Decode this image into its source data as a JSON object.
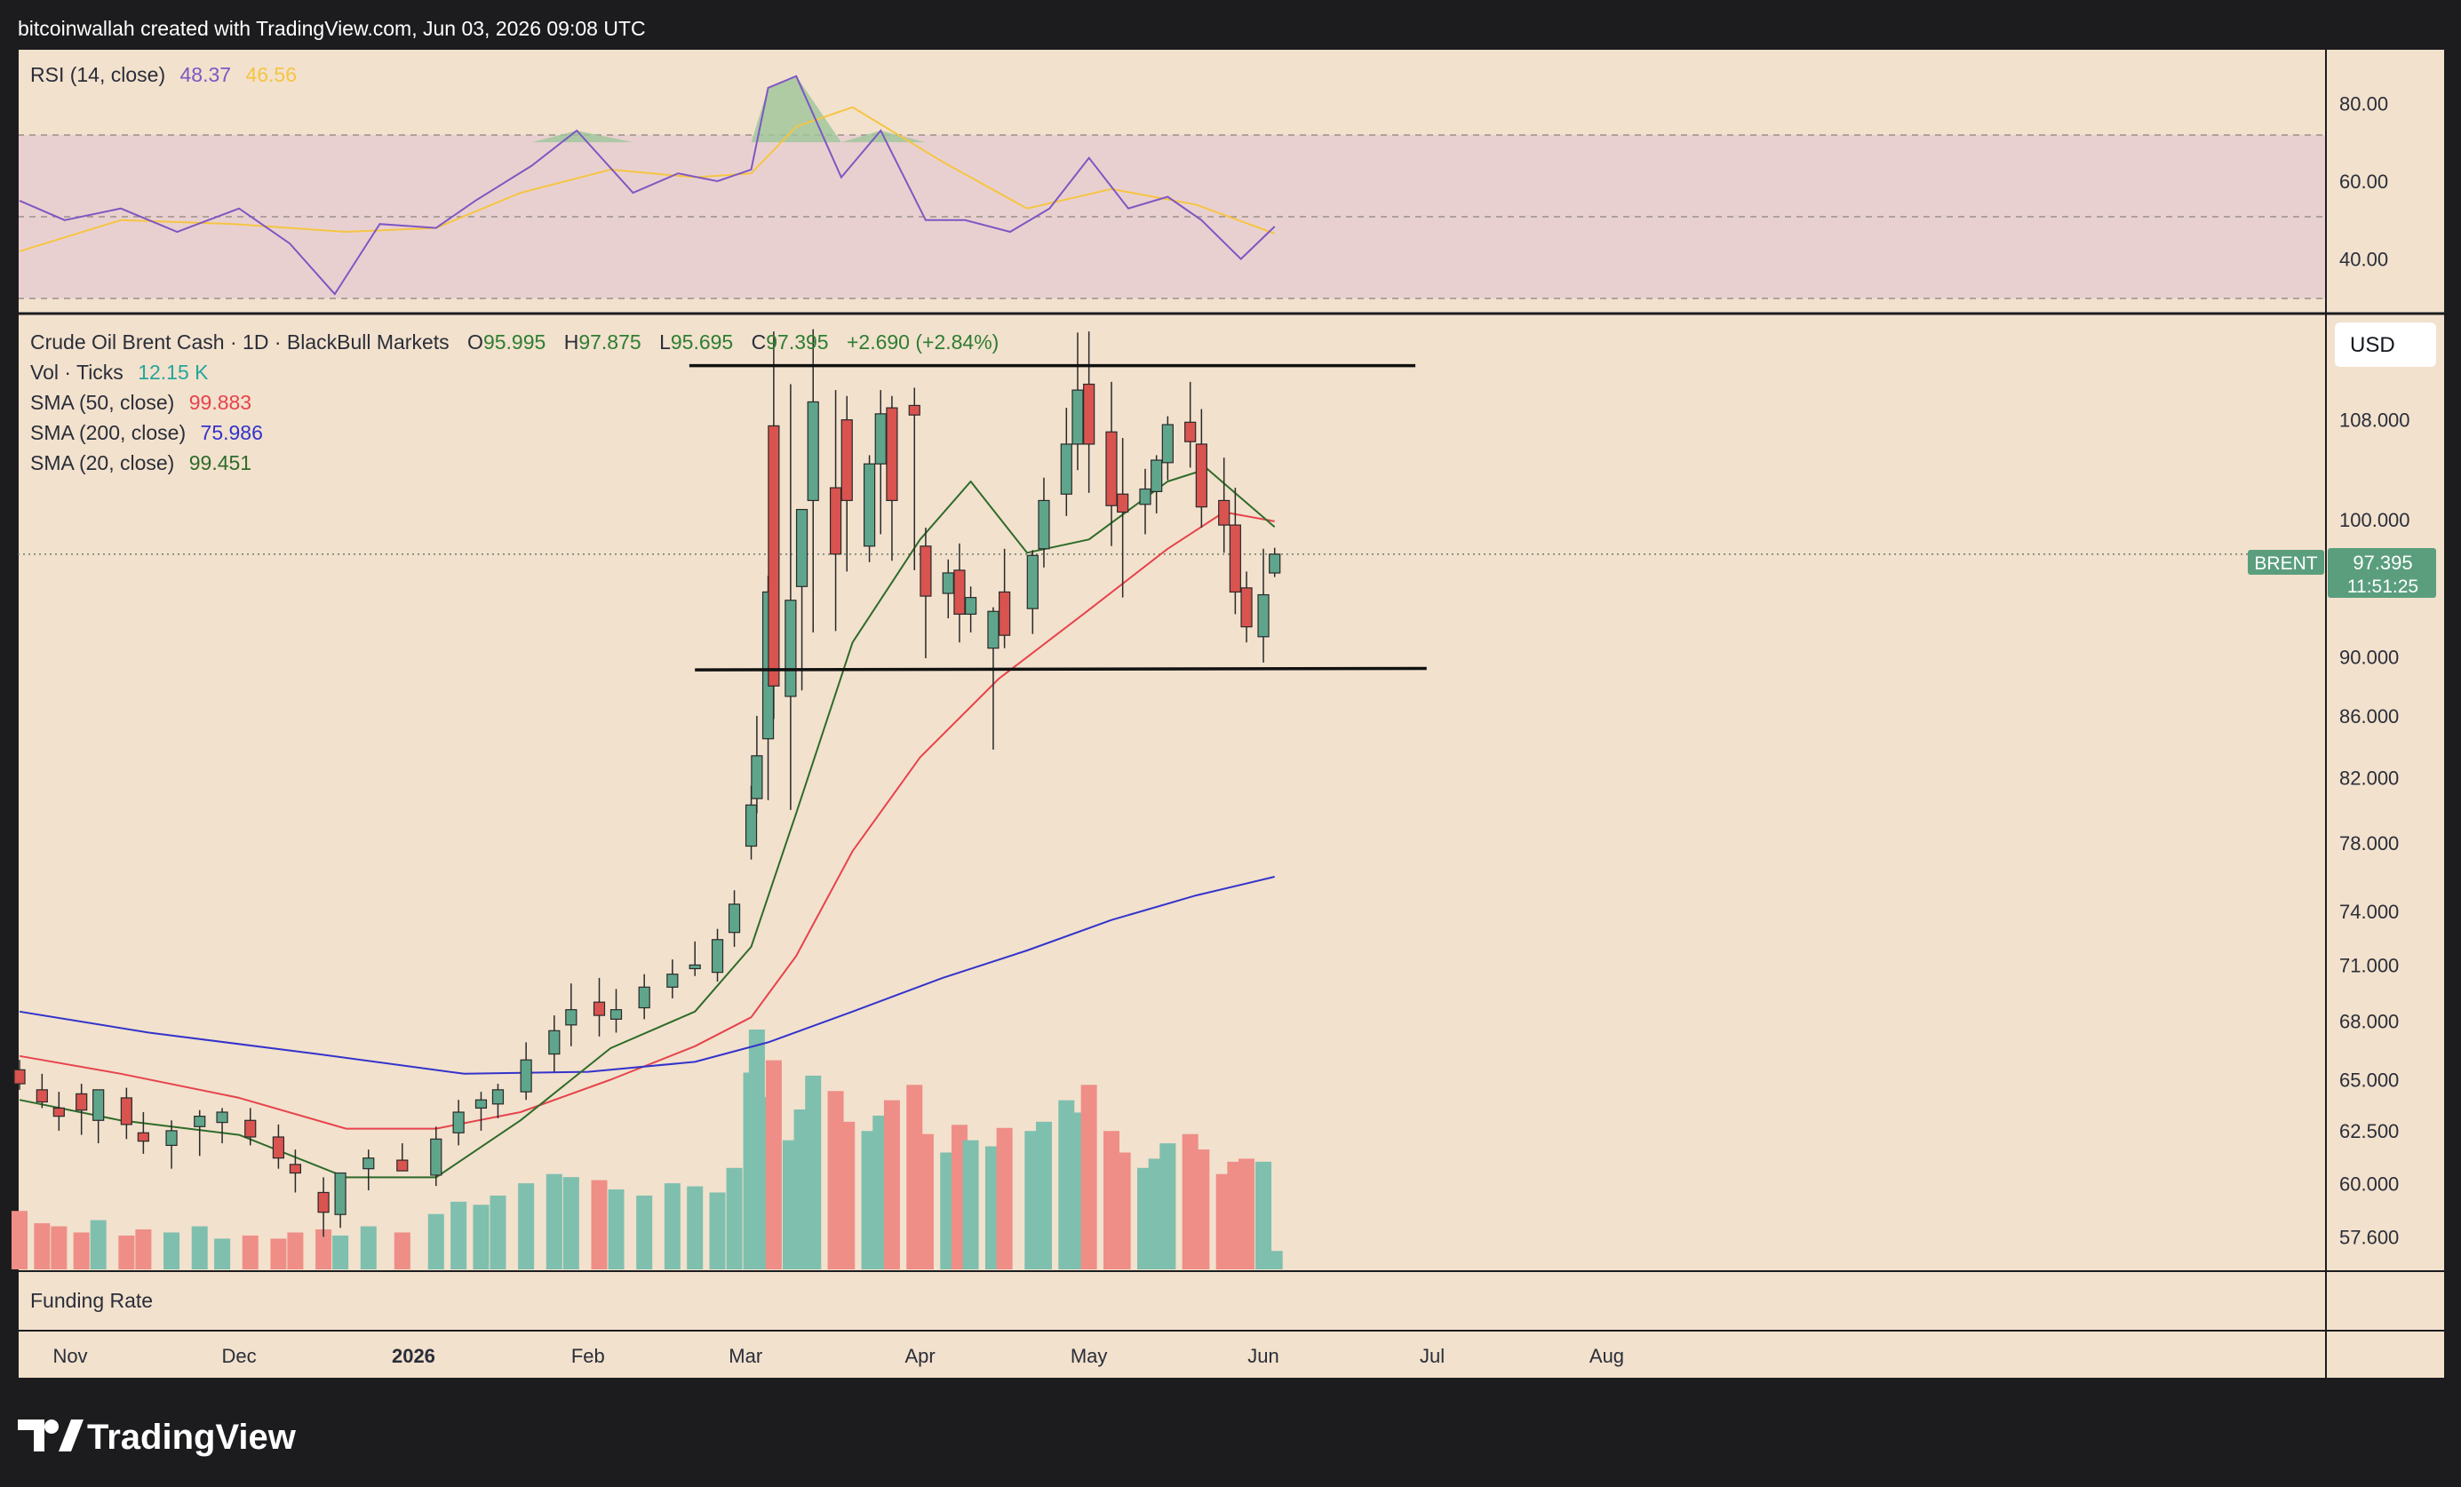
{
  "page": {
    "header_text": "bitcoinwallah created with TradingView.com, Jun 03, 2026 09:08 UTC",
    "brand": "TradingView",
    "brand_icon": "tradingview-logo-icon"
  },
  "colors": {
    "frame": "#1c1c1e",
    "panel_bg": "#f2e1cd",
    "rsi_band": "#e9d0d0",
    "rsi_line": "#7e57c2",
    "rsi_ma": "#f5c542",
    "up": "#5fa58c",
    "down": "#d9534f",
    "vol_up": "#7fbfae",
    "vol_down": "#ee8e87",
    "sma50": "#e6434b",
    "sma200": "#3333cc",
    "sma20": "#2e6b2a",
    "price_tag": "#5a9e7e"
  },
  "rsi_legend": {
    "name": "RSI (14, close)",
    "value": "48.37",
    "ma_value": "46.56"
  },
  "main_legend": {
    "symbol": "Crude Oil Brent Cash · 1D · BlackBull Markets",
    "open_label": "O",
    "open": "95.995",
    "high_label": "H",
    "high": "97.875",
    "low_label": "L",
    "low": "95.695",
    "close_label": "C",
    "close": "97.395",
    "change": "+2.690 (+2.84%)",
    "vol_label": "Vol · Ticks",
    "vol_value": "12.15 K",
    "sma50_label": "SMA (50, close)",
    "sma50_value": "99.883",
    "sma200_label": "SMA (200, close)",
    "sma200_value": "75.986",
    "sma20_label": "SMA (20, close)",
    "sma20_value": "99.451"
  },
  "currency_button": "USD",
  "price_tag": {
    "symbol": "BRENT",
    "price": "97.395",
    "countdown": "11:51:25"
  },
  "funding_label": "Funding Rate",
  "chart_data": [
    {
      "type": "line",
      "title": "RSI (14, close)",
      "y_ticks": [
        "80.00",
        "60.00",
        "40.00"
      ],
      "ylim": [
        26,
        94
      ],
      "band": [
        30,
        70
      ],
      "midline": 50,
      "series": [
        {
          "name": "RSI",
          "x": [
            "2025-10-23",
            "2025-10-31",
            "2025-11-10",
            "2025-11-20",
            "2025-12-01",
            "2025-12-10",
            "2025-12-18",
            "2025-12-26",
            "2026-01-05",
            "2026-01-12",
            "2026-01-22",
            "2026-01-30",
            "2026-02-09",
            "2026-02-17",
            "2026-02-24",
            "2026-03-02",
            "2026-03-05",
            "2026-03-10",
            "2026-03-18",
            "2026-03-25",
            "2026-04-02",
            "2026-04-09",
            "2026-04-17",
            "2026-04-24",
            "2026-05-01",
            "2026-05-08",
            "2026-05-15",
            "2026-05-21",
            "2026-05-28",
            "2026-06-03"
          ],
          "values": [
            55,
            50,
            53,
            47,
            53,
            44,
            31,
            49,
            48,
            55,
            64,
            73,
            57,
            62,
            60,
            63,
            84,
            87,
            61,
            73,
            50,
            50,
            47,
            53,
            66,
            53,
            56,
            50,
            40,
            48.37
          ]
        },
        {
          "name": "RSI-based MA",
          "x": [
            "2025-10-23",
            "2025-11-10",
            "2025-11-30",
            "2025-12-20",
            "2026-01-05",
            "2026-01-20",
            "2026-02-05",
            "2026-02-20",
            "2026-03-02",
            "2026-03-10",
            "2026-03-20",
            "2026-04-05",
            "2026-04-20",
            "2026-05-05",
            "2026-05-20",
            "2026-06-03"
          ],
          "values": [
            42,
            50,
            49,
            47,
            48,
            57,
            63,
            61,
            62,
            74,
            79,
            65,
            53,
            58,
            54,
            46.56
          ]
        }
      ]
    },
    {
      "type": "candlestick",
      "title": "Crude Oil Brent Cash · 1D · BlackBull Markets",
      "y_ticks": [
        "108.000",
        "100.000",
        "90.000",
        "86.000",
        "82.000",
        "78.000",
        "74.000",
        "71.000",
        "68.000",
        "65.000",
        "62.500",
        "60.000",
        "57.600"
      ],
      "x_ticks": [
        "Nov",
        "Dec",
        "2026",
        "Feb",
        "Mar",
        "Apr",
        "May",
        "Jun",
        "Jul",
        "Aug"
      ],
      "x_tick_dates": [
        "2025-11-01",
        "2025-12-01",
        "2026-01-01",
        "2026-02-01",
        "2026-03-01",
        "2026-04-01",
        "2026-05-01",
        "2026-06-01",
        "2026-07-01",
        "2026-08-01"
      ],
      "scale": "log",
      "ylim": [
        56.1,
        117.2
      ],
      "last_price": 97.395,
      "candles": {
        "x": [
          "2025-10-23",
          "2025-10-27",
          "2025-10-30",
          "2025-11-03",
          "2025-11-06",
          "2025-11-11",
          "2025-11-14",
          "2025-11-19",
          "2025-11-24",
          "2025-11-28",
          "2025-12-03",
          "2025-12-08",
          "2025-12-11",
          "2025-12-16",
          "2025-12-19",
          "2025-12-24",
          "2025-12-30",
          "2026-01-05",
          "2026-01-09",
          "2026-01-13",
          "2026-01-16",
          "2026-01-21",
          "2026-01-26",
          "2026-01-29",
          "2026-02-03",
          "2026-02-06",
          "2026-02-11",
          "2026-02-16",
          "2026-02-20",
          "2026-02-24",
          "2026-02-27",
          "2026-03-02",
          "2026-03-03",
          "2026-03-05",
          "2026-03-06",
          "2026-03-09",
          "2026-03-11",
          "2026-03-13",
          "2026-03-17",
          "2026-03-19",
          "2026-03-23",
          "2026-03-25",
          "2026-03-27",
          "2026-03-31",
          "2026-04-02",
          "2026-04-06",
          "2026-04-08",
          "2026-04-10",
          "2026-04-14",
          "2026-04-16",
          "2026-04-21",
          "2026-04-23",
          "2026-04-27",
          "2026-04-29",
          "2026-05-01",
          "2026-05-05",
          "2026-05-07",
          "2026-05-11",
          "2026-05-13",
          "2026-05-15",
          "2026-05-19",
          "2026-05-21",
          "2026-05-25",
          "2026-05-27",
          "2026-05-29",
          "2026-06-01",
          "2026-06-03"
        ],
        "open": [
          65.5,
          64.5,
          63.6,
          64.3,
          63.0,
          64.1,
          62.4,
          61.8,
          62.7,
          62.9,
          63.0,
          62.2,
          60.9,
          59.6,
          58.6,
          60.7,
          61.1,
          60.4,
          62.4,
          63.6,
          63.8,
          64.4,
          66.3,
          67.8,
          69.0,
          68.1,
          68.7,
          69.8,
          70.8,
          70.6,
          72.8,
          77.8,
          80.7,
          84.5,
          107.5,
          87.3,
          95.0,
          101.5,
          102.5,
          108.0,
          98.0,
          104.4,
          109.0,
          109.2,
          98.0,
          94.5,
          96.2,
          93.0,
          90.6,
          94.6,
          93.4,
          97.8,
          102.0,
          106.0,
          111.0,
          107.0,
          102.0,
          101.2,
          102.2,
          104.5,
          107.8,
          106.0,
          101.5,
          99.6,
          94.9,
          91.4,
          95.995
        ],
        "high": [
          66.0,
          65.3,
          64.4,
          64.8,
          64.1,
          64.6,
          63.4,
          63.0,
          63.5,
          63.6,
          63.6,
          62.8,
          61.6,
          60.3,
          60.1,
          61.6,
          61.9,
          62.7,
          64.0,
          64.4,
          64.8,
          66.9,
          68.3,
          70.0,
          70.3,
          69.7,
          70.5,
          71.3,
          72.3,
          73.0,
          75.2,
          81.5,
          86.0,
          95.8,
          115.6,
          111.0,
          97.6,
          115.8,
          110.5,
          110.0,
          105.1,
          110.5,
          110.0,
          110.7,
          99.4,
          97.0,
          98.2,
          95.0,
          93.5,
          97.8,
          97.7,
          103.3,
          109.0,
          115.5,
          115.6,
          111.2,
          106.5,
          104.0,
          105.1,
          108.3,
          111.2,
          108.9,
          104.9,
          102.5,
          96.1,
          97.8,
          97.875
        ],
        "low": [
          64.5,
          63.6,
          62.5,
          62.3,
          61.9,
          62.1,
          61.4,
          60.7,
          61.3,
          61.9,
          61.8,
          60.7,
          59.6,
          57.6,
          58.0,
          59.7,
          60.6,
          59.9,
          61.8,
          62.5,
          63.1,
          64.0,
          65.4,
          66.7,
          67.2,
          67.4,
          68.1,
          69.2,
          70.4,
          70.1,
          72.0,
          77.0,
          79.8,
          80.6,
          85.8,
          80.0,
          87.7,
          91.7,
          91.8,
          96.1,
          96.8,
          98.9,
          96.9,
          96.2,
          89.9,
          92.7,
          91.0,
          91.7,
          83.8,
          90.6,
          91.6,
          96.4,
          100.3,
          103.9,
          102.1,
          98.0,
          94.2,
          98.9,
          100.5,
          103.1,
          104.1,
          99.4,
          97.5,
          93.0,
          91.0,
          89.6,
          95.695
        ],
        "close": [
          64.8,
          63.9,
          63.2,
          63.5,
          64.5,
          62.8,
          62.0,
          62.5,
          63.2,
          63.4,
          62.2,
          61.2,
          60.5,
          58.7,
          60.5,
          61.2,
          60.6,
          62.1,
          63.4,
          64.0,
          64.5,
          66.0,
          67.5,
          68.6,
          68.3,
          68.6,
          69.8,
          70.5,
          71.0,
          72.4,
          74.4,
          80.3,
          83.4,
          94.6,
          88.0,
          94.0,
          100.8,
          109.5,
          97.4,
          101.5,
          104.4,
          108.5,
          101.5,
          108.4,
          94.3,
          96.0,
          93.0,
          94.2,
          93.2,
          91.5,
          97.3,
          101.5,
          106.0,
          110.5,
          106.0,
          101.1,
          100.6,
          102.4,
          104.7,
          107.6,
          106.2,
          101.0,
          99.6,
          94.6,
          92.1,
          94.4,
          97.395
        ]
      },
      "volume": [
        19,
        15,
        14,
        12,
        16,
        11,
        13,
        12,
        14,
        10,
        11,
        10,
        12,
        13,
        11,
        14,
        12,
        18,
        22,
        21,
        24,
        28,
        31,
        30,
        29,
        26,
        24,
        28,
        27,
        25,
        33,
        64,
        78,
        56,
        68,
        42,
        52,
        63,
        58,
        48,
        45,
        50,
        55,
        60,
        44,
        38,
        47,
        42,
        40,
        46,
        45,
        48,
        55,
        51,
        60,
        45,
        38,
        33,
        36,
        41,
        44,
        39,
        31,
        35,
        36,
        35,
        6
      ],
      "series": [
        {
          "name": "SMA (50, close)",
          "x": [
            "2025-10-23",
            "2025-11-10",
            "2025-12-01",
            "2025-12-20",
            "2026-01-05",
            "2026-01-20",
            "2026-02-05",
            "2026-02-20",
            "2026-03-02",
            "2026-03-10",
            "2026-03-20",
            "2026-04-01",
            "2026-04-15",
            "2026-04-30",
            "2026-05-15",
            "2026-05-25",
            "2026-06-03"
          ],
          "values": [
            66.2,
            65.3,
            64.1,
            62.6,
            62.6,
            63.4,
            65.0,
            66.7,
            68.2,
            71.5,
            77.5,
            83.3,
            88.5,
            93.0,
            97.8,
            100.6,
            99.883
          ]
        },
        {
          "name": "SMA (200, close)",
          "x": [
            "2025-10-23",
            "2025-11-15",
            "2025-12-15",
            "2026-01-10",
            "2026-02-01",
            "2026-02-20",
            "2026-03-05",
            "2026-03-20",
            "2026-04-05",
            "2026-04-20",
            "2026-05-05",
            "2026-05-20",
            "2026-06-03"
          ],
          "values": [
            68.5,
            67.4,
            66.3,
            65.3,
            65.4,
            65.9,
            66.9,
            68.5,
            70.3,
            71.8,
            73.5,
            74.9,
            75.986
          ]
        },
        {
          "name": "SMA (20, close)",
          "x": [
            "2025-10-23",
            "2025-11-10",
            "2025-12-01",
            "2025-12-20",
            "2026-01-05",
            "2026-01-20",
            "2026-02-05",
            "2026-02-20",
            "2026-03-02",
            "2026-03-10",
            "2026-03-20",
            "2026-04-01",
            "2026-04-10",
            "2026-04-20",
            "2026-05-01",
            "2026-05-15",
            "2026-05-22",
            "2026-06-03"
          ],
          "values": [
            64.0,
            63.0,
            62.3,
            60.3,
            60.3,
            63.0,
            66.6,
            68.5,
            72.0,
            79.8,
            91.0,
            98.5,
            103.0,
            97.5,
            98.5,
            103.0,
            104.0,
            99.451
          ]
        }
      ],
      "trendlines": [
        {
          "name": "resistance",
          "x": [
            "2026-02-19",
            "2026-06-28"
          ],
          "values": [
            112.6,
            112.6
          ]
        },
        {
          "name": "support",
          "x": [
            "2026-02-20",
            "2026-06-30"
          ],
          "values": [
            89.1,
            89.2
          ]
        }
      ]
    }
  ]
}
